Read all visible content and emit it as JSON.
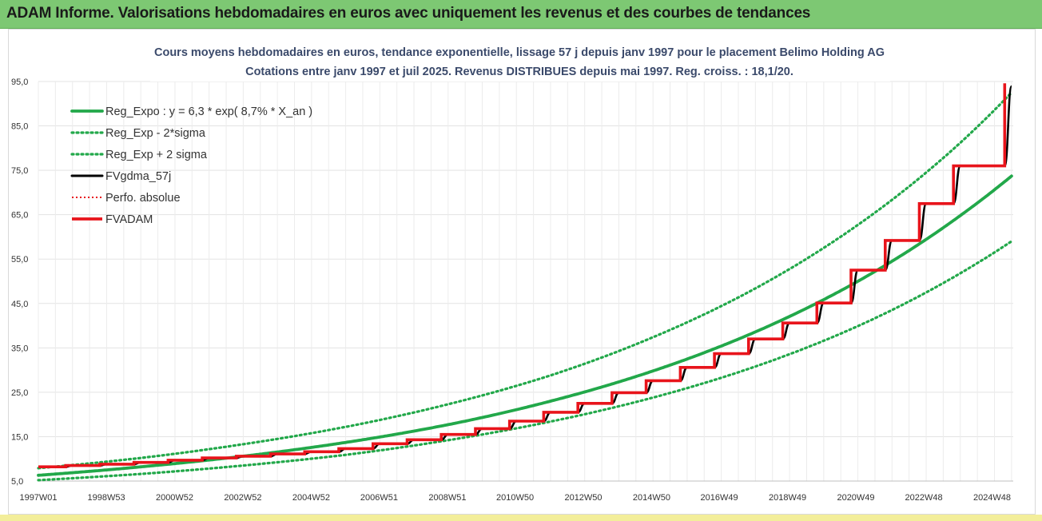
{
  "banner": {
    "title": "ADAM Informe. Valorisations hebdomadaires en euros avec uniquement les revenus et des courbes de tendances"
  },
  "colors": {
    "banner_bg": "#7dc873",
    "reg_green": "#22a84a",
    "black": "#000000",
    "red": "#e8141b",
    "perfo_red": "#e8141b",
    "grid": "#e3e3e3"
  },
  "chart_data": {
    "type": "line",
    "title_line1": "Cours moyens hebdomadaires en euros, tendance exponentielle, lissage 57 j depuis janv 1997  pour le placement Belimo Holding AG",
    "title_line2": "Cotations entre janv 1997 et juil 2025. Revenus DISTRIBUES depuis mai 1997. Reg.  croiss. : 18,1/20.",
    "x_start": 1997.0,
    "x_end": 2025.55,
    "x_ticks": [
      {
        "label": "1997W01",
        "year": 1997.0
      },
      {
        "label": "1998W53",
        "year": 1998.99
      },
      {
        "label": "2000W52",
        "year": 2000.99
      },
      {
        "label": "2002W52",
        "year": 2002.99
      },
      {
        "label": "2004W52",
        "year": 2004.99
      },
      {
        "label": "2006W51",
        "year": 2006.98
      },
      {
        "label": "2008W51",
        "year": 2008.98
      },
      {
        "label": "2010W50",
        "year": 2010.96
      },
      {
        "label": "2012W50",
        "year": 2012.96
      },
      {
        "label": "2014W50",
        "year": 2014.96
      },
      {
        "label": "2016W49",
        "year": 2016.94
      },
      {
        "label": "2018W49",
        "year": 2018.94
      },
      {
        "label": "2020W49",
        "year": 2020.94
      },
      {
        "label": "2022W48",
        "year": 2022.93
      },
      {
        "label": "2024W48",
        "year": 2024.93
      }
    ],
    "y_ticks": [
      "5,0",
      "15,0",
      "25,0",
      "35,0",
      "45,0",
      "55,0",
      "65,0",
      "75,0",
      "85,0",
      "95,0"
    ],
    "y_tick_values": [
      5,
      15,
      25,
      35,
      45,
      55,
      65,
      75,
      85,
      95
    ],
    "ylim": [
      5,
      95
    ],
    "grid": true,
    "legend_position": "top-left",
    "series": [
      {
        "name": "Reg_Expo : y = 6,3 * exp( 8,7% *  X_an )",
        "style": "solid",
        "color": "#22a84a",
        "x": [
          1997,
          2000,
          2003,
          2006,
          2009,
          2012,
          2015,
          2018,
          2021,
          2024,
          2025.5
        ],
        "y": [
          6.3,
          8.2,
          10.6,
          13.7,
          17.7,
          23.0,
          29.8,
          38.6,
          50.0,
          64.8,
          73.7
        ]
      },
      {
        "name": "Reg_Exp - 2*sigma",
        "style": "dotted",
        "color": "#22a84a",
        "x": [
          1997,
          2000,
          2003,
          2006,
          2009,
          2012,
          2015,
          2018,
          2021,
          2024,
          2025.5
        ],
        "y": [
          5.2,
          6.6,
          8.5,
          10.9,
          14.2,
          18.4,
          23.8,
          30.8,
          39.9,
          51.8,
          59.0
        ]
      },
      {
        "name": "Reg_Exp + 2 sigma",
        "style": "dotted",
        "color": "#22a84a",
        "x": [
          1997,
          2000,
          2003,
          2006,
          2009,
          2012,
          2015,
          2018,
          2021,
          2024,
          2025.5
        ],
        "y": [
          7.9,
          10.2,
          13.3,
          17.2,
          22.3,
          28.8,
          37.4,
          48.4,
          62.7,
          81.2,
          92.5
        ]
      },
      {
        "name": "FVgdma_57j",
        "style": "solid",
        "color": "#000000",
        "x": [
          1997,
          1998,
          1999,
          2000,
          2001,
          2002,
          2003,
          2004,
          2005,
          2006,
          2007,
          2008,
          2009,
          2010,
          2011,
          2012,
          2013,
          2014,
          2015,
          2016,
          2017,
          2018,
          2019,
          2020,
          2021,
          2022,
          2023,
          2024,
          2025.5
        ],
        "y": [
          8.2,
          8.5,
          8.8,
          9.2,
          9.7,
          10.2,
          10.6,
          11.1,
          11.6,
          12.3,
          13.4,
          14.3,
          15.5,
          16.8,
          18.5,
          20.5,
          22.5,
          24.9,
          27.6,
          30.6,
          33.7,
          37.0,
          40.6,
          45.1,
          52.5,
          59.2,
          67.5,
          76.0,
          93.9
        ]
      },
      {
        "name": "Perfo. absolue",
        "style": "dotted",
        "color": "#e8141b",
        "x": [
          1997,
          1998,
          1999,
          2000,
          2001,
          2002,
          2003,
          2004,
          2005,
          2006,
          2007,
          2008,
          2009,
          2010,
          2011,
          2012,
          2013,
          2014,
          2015,
          2016,
          2017,
          2018,
          2019,
          2020,
          2021,
          2022,
          2023,
          2024,
          2025.5
        ],
        "y": [
          8.2,
          8.5,
          8.8,
          9.2,
          9.7,
          10.2,
          10.6,
          11.1,
          11.6,
          12.3,
          13.4,
          14.3,
          15.5,
          16.8,
          18.5,
          20.5,
          22.5,
          24.9,
          27.6,
          30.6,
          33.7,
          37.0,
          40.6,
          45.1,
          52.5,
          59.2,
          67.5,
          76.0,
          94.6
        ]
      },
      {
        "name": "FVADAM",
        "style": "solid-thick",
        "color": "#e8141b",
        "x": [
          1997,
          1998,
          1999,
          2000,
          2001,
          2002,
          2003,
          2004,
          2005,
          2006,
          2007,
          2008,
          2009,
          2010,
          2011,
          2012,
          2013,
          2014,
          2015,
          2016,
          2017,
          2018,
          2019,
          2020,
          2021,
          2022,
          2023,
          2024,
          2025.5
        ],
        "y": [
          8.2,
          8.5,
          8.8,
          9.2,
          9.7,
          10.2,
          10.6,
          11.1,
          11.6,
          12.3,
          13.4,
          14.3,
          15.5,
          16.8,
          18.5,
          20.5,
          22.5,
          24.9,
          27.6,
          30.6,
          33.7,
          37.0,
          40.6,
          45.1,
          52.5,
          59.2,
          67.5,
          76.0,
          94.6
        ]
      }
    ]
  }
}
